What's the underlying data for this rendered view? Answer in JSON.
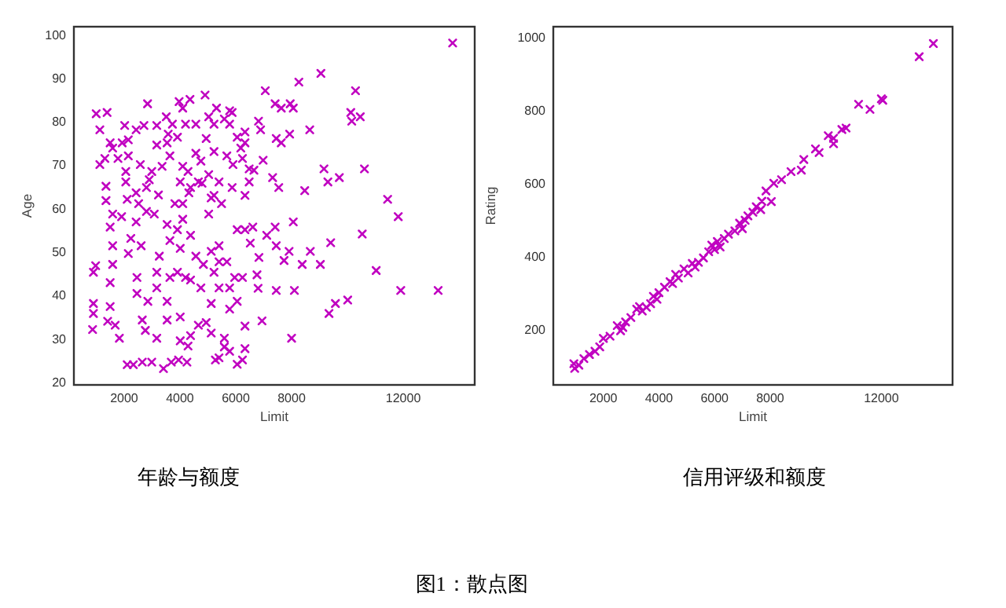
{
  "chart_data": [
    {
      "type": "scatter",
      "title": "年龄与额度",
      "xlabel": "Limit",
      "ylabel": "Age",
      "color": "#c000c0",
      "marker": "cross",
      "xlim": [
        200,
        14560
      ],
      "ylim": [
        19.25,
        101.75
      ],
      "xticks": [
        2000,
        4000,
        6000,
        8000,
        12000
      ],
      "yticks": [
        20,
        30,
        40,
        50,
        60,
        70,
        80,
        90,
        100
      ],
      "annotations": [
        "图1：散点图"
      ],
      "x": [
        13770,
        9050,
        8260,
        10290,
        7057,
        4900,
        2840,
        3970,
        4360,
        7410,
        7950,
        10120,
        10460,
        10155,
        1390,
        1000,
        5870,
        5310,
        8060,
        7630,
        6815,
        8650,
        6890,
        1130,
        2020,
        2430,
        3580,
        7930,
        7450,
        7630,
        1930,
        3170,
        6330,
        5220,
        6980,
        1130,
        2150,
        2580,
        4100,
        5900,
        6650,
        9160,
        10610,
        9710,
        9300,
        7320,
        7540,
        8470,
        1350,
        2060,
        2800,
        4380,
        4790,
        5400,
        3230,
        2110,
        11440,
        11820,
        10530,
        9400,
        8060,
        7410,
        6610,
        6050,
        7450,
        7910,
        8670,
        7730,
        9030,
        8380,
        11030,
        6830,
        6760,
        7450,
        8100,
        11910,
        13250,
        6800,
        10010,
        9570,
        9340,
        6940,
        8000,
        6330,
        6330,
        6240,
        6050,
        3410,
        2110,
        2330,
        2650,
        2990,
        3690,
        3950,
        4250,
        5270,
        5400,
        5590,
        870,
        900,
        900,
        900,
        980,
        1410,
        1830,
        1680,
        1500,
        1500,
        1590,
        1590,
        1500,
        1910,
        2430,
        2240,
        2610,
        2150,
        2460,
        2460,
        2850,
        2650,
        2760,
        3170,
        3540,
        3540,
        3170,
        3640,
        3170,
        3910,
        3260,
        4010,
        3640,
        3540,
        3910,
        3080,
        2800,
        4100,
        3820,
        4100,
        4380,
        4570,
        4840,
        5120,
        5400,
        5220,
        5400,
        5120,
        4940,
        4660,
        4380,
        4010,
        4290,
        4010,
        4750,
        4380,
        4200,
        5780,
        6050,
        5960,
        6240,
        5680,
        5780,
        5400,
        5030,
        5220,
        5490,
        5030,
        4750,
        4290,
        4010,
        3640,
        3360,
        2990,
        2900,
        2060,
        1780,
        1590,
        1500,
        2150,
        1310,
        1350,
        1590,
        2520,
        2430,
        5780,
        5590,
        5120,
        5120,
        5680,
        6050,
        6330,
        5780,
        5590,
        5220,
        4570,
        4200,
        3730,
        3170,
        2710,
        4100,
        3510,
        5030,
        5780,
        4940,
        4570,
        3910,
        3540,
        4660,
        4320,
        5870,
        6330,
        6480,
        6480,
        6240,
        6180,
        6330,
        6520,
        7110
      ],
      "values": [
        98,
        91,
        89,
        87,
        87,
        86,
        84,
        84.5,
        85,
        84,
        84,
        82,
        81,
        80,
        82,
        81.7,
        82,
        83,
        83,
        83,
        80,
        78,
        78,
        78,
        79,
        78,
        77,
        77,
        76,
        75,
        75,
        74.5,
        75,
        73,
        71,
        70,
        72,
        70,
        69.6,
        70,
        68.7,
        69,
        69,
        67,
        66,
        67,
        64.7,
        64,
        65,
        66,
        64.7,
        64.7,
        65.7,
        66,
        63,
        62,
        62,
        58,
        54,
        52,
        56.8,
        55.6,
        55.6,
        55,
        51.3,
        50,
        50,
        47.9,
        47,
        47,
        45.6,
        48.6,
        44.6,
        41,
        41,
        41,
        41,
        41.5,
        38.8,
        38,
        35.7,
        34,
        30,
        32.8,
        27.6,
        25,
        24,
        23,
        23.9,
        23.9,
        24.5,
        24.5,
        24.5,
        25,
        24.5,
        25,
        25.5,
        28,
        32,
        38,
        35.7,
        45.2,
        46.7,
        33.9,
        30,
        33,
        37.3,
        42.8,
        47,
        51.3,
        55.6,
        58,
        56.8,
        53,
        51.3,
        49.5,
        40.3,
        44,
        38.5,
        34.2,
        31.8,
        30,
        34.2,
        38.5,
        41.6,
        44,
        45.2,
        45.2,
        48.9,
        50.7,
        52.5,
        56.2,
        55,
        58.6,
        59.2,
        57.4,
        61,
        61,
        53.7,
        48.9,
        47,
        50,
        51.3,
        45.2,
        41.6,
        38,
        33.6,
        33,
        30.6,
        29.4,
        28.2,
        34.9,
        41.6,
        43.4,
        44,
        36.7,
        38.5,
        44,
        44,
        47.6,
        41.6,
        47.6,
        58.6,
        62.9,
        61,
        67.7,
        70.8,
        68.4,
        66,
        72,
        69.6,
        68.4,
        66.5,
        68.4,
        71.4,
        73.8,
        75,
        75.7,
        71.4,
        61.7,
        58.6,
        61,
        63.5,
        27,
        30,
        31.2,
        62.3,
        72,
        76.3,
        77.5,
        79.3,
        80.5,
        79.3,
        79.3,
        79.3,
        79.3,
        79,
        79,
        83,
        81,
        81,
        82.4,
        76,
        72.6,
        76.3,
        75,
        66,
        63.5,
        64.7,
        62.9,
        66,
        69,
        71.4,
        73.8,
        55,
        51.9,
        53.7
      ]
    },
    {
      "type": "scatter",
      "title": "信用评级和额度",
      "xlabel": "Limit",
      "ylabel": "Rating",
      "color": "#c000c0",
      "marker": "cross",
      "xlim": [
        200,
        14560
      ],
      "ylim": [
        48,
        1027
      ],
      "xticks": [
        2000,
        4000,
        6000,
        8000,
        12000
      ],
      "yticks": [
        200,
        400,
        600,
        800,
        1000
      ],
      "x": [
        13870,
        13360,
        11180,
        11590,
        12000,
        12050,
        10730,
        10580,
        10280,
        10090,
        10280,
        9630,
        9760,
        9210,
        9120,
        8750,
        8410,
        8130,
        7850,
        7660,
        7100,
        6730,
        6350,
        5790,
        5420,
        5050,
        4490,
        3930,
        3550,
        2990,
        2620,
        2240,
        1870,
        1500,
        1120,
        940,
        970,
        8040,
        7380,
        2500,
        2700,
        3200,
        3400,
        3700,
        4000,
        4200,
        4700,
        5200,
        5600,
        5900,
        6100,
        6500,
        6900,
        7200,
        7500,
        7700,
        1300,
        1700,
        2000,
        2800,
        3300,
        4400,
        4900,
        5300,
        6200,
        7000,
        6000,
        3800,
        4600
      ],
      "values": [
        981,
        945,
        815,
        801,
        830,
        826,
        750,
        746,
        722,
        729,
        707,
        693,
        683,
        664,
        635,
        631,
        609,
        599,
        578,
        527,
        498,
        469,
        448,
        412,
        383,
        354,
        325,
        282,
        260,
        232,
        196,
        181,
        152,
        131,
        102,
        106,
        93,
        549,
        520,
        210,
        205,
        255,
        250,
        270,
        300,
        315,
        340,
        380,
        395,
        430,
        440,
        460,
        490,
        510,
        535,
        550,
        120,
        140,
        175,
        220,
        262,
        330,
        365,
        370,
        425,
        475,
        418,
        290,
        350
      ]
    }
  ]
}
